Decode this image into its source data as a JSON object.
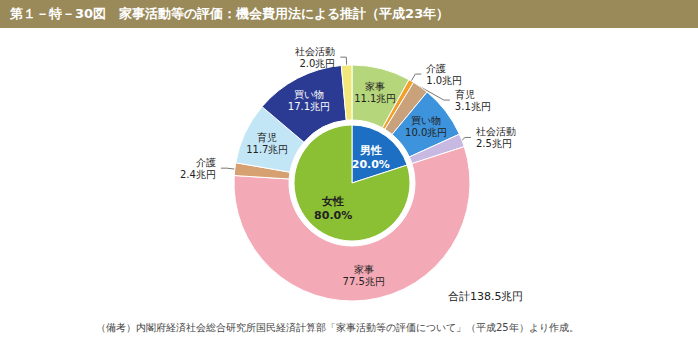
{
  "chart_data": {
    "type": "pie",
    "title": "第１－特－30図　家事活動等の評価：機会費用法による推計（平成23年）",
    "annotations": [
      "合計138.5兆円"
    ],
    "note": "（備考）内閣府経済社会総合研究所国民経済計算部「家事活動等の評価について」（平成25年）より作成。",
    "data_labels": true,
    "legend": false,
    "rings": [
      {
        "categories": [
          "男性",
          "女性"
        ],
        "values": [
          20.0,
          80.0
        ],
        "value_labels": [
          "20.0%",
          "80.0%"
        ],
        "colors": [
          "#1c6fc2",
          "#8cc034"
        ]
      },
      {
        "categories": [
          "家事",
          "介護",
          "育児",
          "買い物",
          "社会活動",
          "家事",
          "介護",
          "育児",
          "買い物",
          "社会活動"
        ],
        "values": [
          11.1,
          1.0,
          3.1,
          10.0,
          2.5,
          77.5,
          2.4,
          11.7,
          17.1,
          2.0
        ],
        "value_labels": [
          "11.1兆円",
          "1.0兆円",
          "3.1兆円",
          "10.0兆円",
          "2.5兆円",
          "77.5兆円",
          "2.4兆円",
          "11.7兆円",
          "17.1兆円",
          "2.0兆円"
        ],
        "colors": [
          "#b6d67c",
          "#f0a02c",
          "#c9a27c",
          "#3d93dc",
          "#c8b9e2",
          "#f4aab6",
          "#d6a070",
          "#c2e6f6",
          "#2b3a92",
          "#f2e87a"
        ]
      }
    ]
  }
}
